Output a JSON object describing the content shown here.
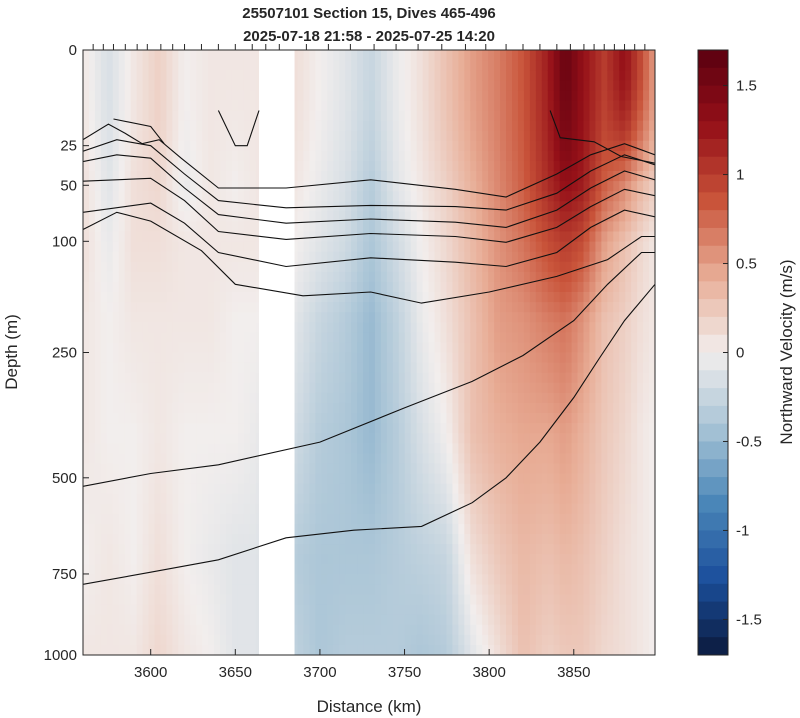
{
  "chart_data": {
    "type": "heatmap",
    "title": "25507101 Section 15, Dives 465-496",
    "subtitle": "2025-07-18 21:58 - 2025-07-25 14:20",
    "xlabel": "Distance (km)",
    "ylabel": "Depth (m)",
    "colorbar_label": "Northward Velocity (m/s)",
    "xlim": [
      3560,
      3898
    ],
    "x_ticks": [
      3600,
      3650,
      3700,
      3750,
      3800,
      3850
    ],
    "x_tick_labels": [
      "3600",
      "3650",
      "3700",
      "3750",
      "3800",
      "3850"
    ],
    "y_scale": "sqrt",
    "ylim": [
      0,
      1000
    ],
    "y_ticks": [
      0,
      25,
      50,
      100,
      250,
      500,
      750,
      1000
    ],
    "y_tick_labels": [
      "0",
      "25",
      "50",
      "100",
      "250",
      "500",
      "750",
      "1000"
    ],
    "clim": [
      -1.7,
      1.7
    ],
    "c_ticks": [
      -1.5,
      -1,
      -0.5,
      0,
      0.5,
      1,
      1.5
    ],
    "c_tick_labels": [
      "-1.5",
      "-1",
      "-0.5",
      "0",
      "0.5",
      "1",
      "1.5"
    ],
    "colormap": [
      "#0b1a3d",
      "#1b4f9c",
      "#4a86b8",
      "#a8c4d6",
      "#f2eeed",
      "#e8ad96",
      "#c9543a",
      "#951018",
      "#5a0010"
    ],
    "data_gap_km": [
      3664,
      3685
    ],
    "dive_markers_km": [
      3566,
      3572,
      3578,
      3585,
      3592,
      3598,
      3606,
      3613,
      3620,
      3630,
      3640,
      3650,
      3660,
      3668,
      3676,
      3692,
      3705,
      3718,
      3732,
      3745,
      3758,
      3772,
      3786,
      3798,
      3810,
      3820,
      3830,
      3840,
      3848,
      3856,
      3862,
      3868,
      3874,
      3880,
      3886,
      3892
    ],
    "velocity_columns": [
      {
        "x": 3560,
        "v": [
          0.05,
          0.1,
          0.1,
          0.05,
          0.05,
          0.0,
          0.05
        ]
      },
      {
        "x": 3575,
        "v": [
          -0.15,
          -0.1,
          -0.05,
          0.0,
          0.0,
          0.05,
          0.05
        ]
      },
      {
        "x": 3590,
        "v": [
          0.05,
          0.1,
          0.1,
          0.05,
          0.0,
          0.0,
          0.05
        ]
      },
      {
        "x": 3605,
        "v": [
          0.2,
          0.15,
          0.1,
          0.05,
          0.05,
          0.1,
          0.15
        ]
      },
      {
        "x": 3620,
        "v": [
          0.0,
          -0.05,
          0.05,
          0.05,
          0.0,
          0.0,
          0.05
        ]
      },
      {
        "x": 3635,
        "v": [
          0.05,
          0.05,
          0.05,
          0.05,
          0.0,
          -0.05,
          0.0
        ]
      },
      {
        "x": 3650,
        "v": [
          0.05,
          0.0,
          0.05,
          0.0,
          0.0,
          -0.1,
          -0.1
        ]
      },
      {
        "x": 3663,
        "v": [
          0.05,
          0.05,
          0.05,
          0.0,
          -0.05,
          -0.1,
          -0.1
        ]
      },
      {
        "x": 3686,
        "v": [
          0.1,
          0.05,
          0.0,
          -0.1,
          -0.2,
          -0.35,
          -0.3
        ]
      },
      {
        "x": 3700,
        "v": [
          0.0,
          -0.05,
          -0.1,
          -0.25,
          -0.35,
          -0.4,
          -0.4
        ]
      },
      {
        "x": 3715,
        "v": [
          -0.1,
          -0.15,
          -0.2,
          -0.35,
          -0.4,
          -0.4,
          -0.35
        ]
      },
      {
        "x": 3730,
        "v": [
          -0.25,
          -0.35,
          -0.4,
          -0.5,
          -0.5,
          -0.4,
          -0.35
        ]
      },
      {
        "x": 3745,
        "v": [
          -0.05,
          -0.1,
          -0.2,
          -0.3,
          -0.35,
          -0.35,
          -0.35
        ]
      },
      {
        "x": 3760,
        "v": [
          0.1,
          0.05,
          0.0,
          -0.05,
          -0.15,
          -0.3,
          -0.4
        ]
      },
      {
        "x": 3775,
        "v": [
          0.3,
          0.2,
          0.15,
          0.1,
          0.0,
          -0.25,
          -0.35
        ]
      },
      {
        "x": 3790,
        "v": [
          0.5,
          0.4,
          0.35,
          0.3,
          0.3,
          0.1,
          -0.1
        ]
      },
      {
        "x": 3805,
        "v": [
          0.65,
          0.6,
          0.55,
          0.5,
          0.4,
          0.25,
          0.1
        ]
      },
      {
        "x": 3820,
        "v": [
          0.85,
          0.8,
          0.7,
          0.55,
          0.45,
          0.35,
          0.3
        ]
      },
      {
        "x": 3835,
        "v": [
          1.2,
          1.1,
          0.9,
          0.65,
          0.45,
          0.3,
          0.2
        ]
      },
      {
        "x": 3845,
        "v": [
          1.6,
          1.3,
          1.0,
          0.7,
          0.5,
          0.35,
          0.25
        ]
      },
      {
        "x": 3855,
        "v": [
          1.3,
          1.2,
          0.9,
          0.55,
          0.4,
          0.3,
          0.25
        ]
      },
      {
        "x": 3868,
        "v": [
          1.0,
          0.8,
          0.5,
          0.3,
          0.25,
          0.2,
          0.15
        ]
      },
      {
        "x": 3880,
        "v": [
          1.3,
          0.6,
          0.3,
          0.2,
          0.15,
          0.1,
          0.1
        ]
      },
      {
        "x": 3890,
        "v": [
          0.9,
          0.35,
          0.15,
          0.1,
          0.05,
          0.05,
          0.05
        ]
      },
      {
        "x": 3898,
        "v": [
          0.5,
          0.2,
          0.05,
          0.05,
          0.0,
          0.0,
          0.0
        ]
      }
    ],
    "velocity_depths": [
      0,
      50,
      100,
      200,
      400,
      700,
      1000
    ],
    "contours": [
      {
        "x": [
          3578,
          3600,
          3608
        ],
        "depth": [
          13,
          16,
          24
        ]
      },
      {
        "x": [
          3640,
          3650,
          3657,
          3664
        ],
        "depth": [
          10,
          25,
          25,
          10
        ]
      },
      {
        "x": [
          3836,
          3842,
          3862,
          3878,
          3898
        ],
        "depth": [
          10,
          21,
          23,
          31,
          35
        ]
      },
      {
        "x": [
          3560,
          3575,
          3585,
          3595,
          3605,
          3618,
          3640,
          3680,
          3730,
          3780,
          3810,
          3840,
          3860,
          3880,
          3898
        ],
        "depth": [
          22,
          15,
          19,
          24,
          22,
          32,
          52,
          52,
          46,
          53,
          59,
          42,
          30,
          24,
          30
        ]
      },
      {
        "x": [
          3560,
          3580,
          3600,
          3620,
          3640,
          3680,
          3730,
          3780,
          3810,
          3840,
          3860,
          3880,
          3898
        ],
        "depth": [
          28,
          22,
          25,
          42,
          62,
          68,
          66,
          67,
          70,
          56,
          40,
          30,
          36
        ]
      },
      {
        "x": [
          3560,
          3580,
          3600,
          3620,
          3640,
          3680,
          3730,
          3780,
          3810,
          3840,
          3860,
          3880,
          3898
        ],
        "depth": [
          34,
          30,
          32,
          52,
          74,
          82,
          78,
          81,
          86,
          70,
          52,
          40,
          46
        ]
      },
      {
        "x": [
          3560,
          3600,
          3620,
          3640,
          3680,
          3730,
          3780,
          3810,
          3840,
          3860,
          3880,
          3898
        ],
        "depth": [
          47,
          45,
          62,
          90,
          98,
          92,
          95,
          101,
          86,
          67,
          53,
          58
        ]
      },
      {
        "x": [
          3560,
          3600,
          3620,
          3640,
          3680,
          3730,
          3780,
          3810,
          3840,
          3860,
          3880,
          3898
        ],
        "depth": [
          72,
          64,
          82,
          112,
          128,
          118,
          123,
          128,
          112,
          86,
          70,
          76
        ]
      },
      {
        "x": [
          3560,
          3580,
          3600,
          3630,
          3650,
          3690,
          3730,
          3760,
          3800,
          3840,
          3870,
          3890,
          3898
        ],
        "depth": [
          88,
          72,
          80,
          110,
          150,
          165,
          160,
          175,
          160,
          140,
          120,
          95,
          95
        ]
      },
      {
        "x": [
          3560,
          3600,
          3640,
          3700,
          3750,
          3790,
          3820,
          3850,
          3870,
          3890,
          3898
        ],
        "depth": [
          520,
          490,
          470,
          420,
          350,
          300,
          255,
          200,
          150,
          112,
          112
        ]
      },
      {
        "x": [
          3560,
          3600,
          3640,
          3680,
          3720,
          3760,
          3790,
          3810,
          3830,
          3850,
          3865,
          3880,
          3898
        ],
        "depth": [
          780,
          745,
          710,
          650,
          630,
          620,
          560,
          500,
          420,
          330,
          260,
          200,
          150
        ]
      }
    ]
  }
}
